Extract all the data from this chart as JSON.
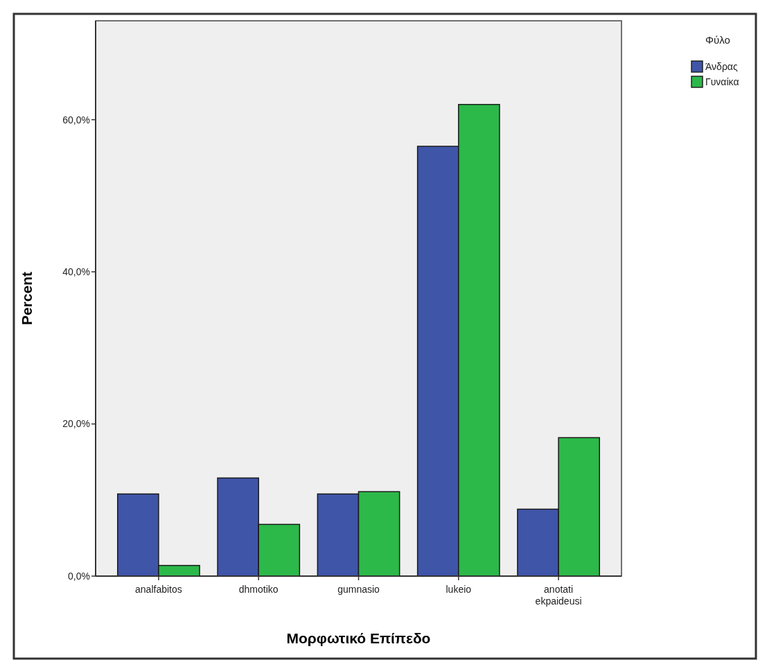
{
  "chart_data": {
    "type": "bar",
    "xlabel": "Μορφωτικό Επίπεδο",
    "ylabel": "Percent",
    "legend_title": "Φύλο",
    "legend": "top right",
    "categories": [
      "analfabitos",
      "dhmotiko",
      "gumnasio",
      "lukeio",
      "anotati ekpaideusi"
    ],
    "series": [
      {
        "name": "Άνδρας",
        "color": "#3f55a8",
        "values": [
          10.8,
          12.9,
          10.8,
          56.5,
          8.8
        ]
      },
      {
        "name": "Γυναίκα",
        "color": "#2db84a",
        "values": [
          1.4,
          6.8,
          11.1,
          62.0,
          18.2
        ]
      }
    ],
    "ylim": [
      0,
      73
    ],
    "yticks": [
      {
        "value": 0,
        "label": "0,0%"
      },
      {
        "value": 20,
        "label": "20,0%"
      },
      {
        "value": 40,
        "label": "40,0%"
      },
      {
        "value": 60,
        "label": "60,0%"
      }
    ],
    "grid": false
  }
}
